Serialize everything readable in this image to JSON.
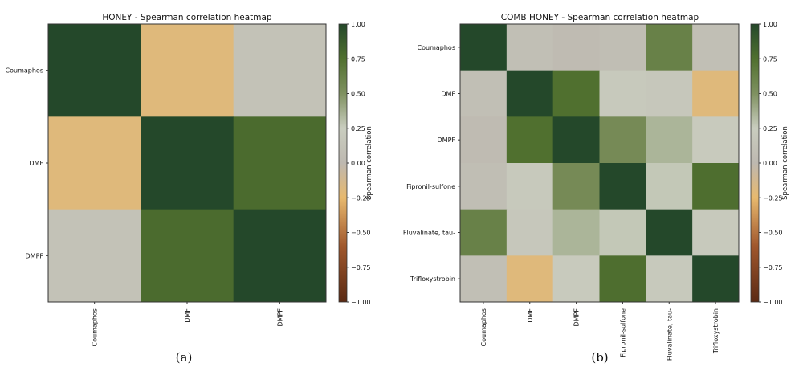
{
  "colorbar": {
    "label": "Spearman correlation",
    "ticks": [
      "1.00",
      "0.75",
      "0.50",
      "0.25",
      "0.00",
      "−0.25",
      "−0.50",
      "−0.75",
      "−1.00"
    ],
    "colormap": [
      {
        "v": -1.0,
        "c": "#5b2a14"
      },
      {
        "v": -0.6,
        "c": "#a0572c"
      },
      {
        "v": -0.25,
        "c": "#e8b96e"
      },
      {
        "v": 0.0,
        "c": "#bdb8b0"
      },
      {
        "v": 0.25,
        "c": "#c9cdbf"
      },
      {
        "v": 0.5,
        "c": "#7f9160"
      },
      {
        "v": 0.75,
        "c": "#50702f"
      },
      {
        "v": 1.0,
        "c": "#24482a"
      }
    ]
  },
  "chart_data": [
    {
      "type": "heatmap",
      "title": "HONEY - Spearman correlation heatmap",
      "panel_label": "(a)",
      "rows": [
        "Coumaphos",
        "DMF",
        "DMPF"
      ],
      "cols": [
        "Coumaphos",
        "DMF",
        "DMPF"
      ],
      "values": [
        [
          1.0,
          -0.2,
          0.12
        ],
        [
          -0.2,
          1.0,
          0.78
        ],
        [
          0.12,
          0.78,
          1.0
        ]
      ],
      "vmin": -1.0,
      "vmax": 1.0,
      "colorbar_label": "Spearman correlation"
    },
    {
      "type": "heatmap",
      "title": "COMB HONEY - Spearman correlation heatmap",
      "panel_label": "(b)",
      "rows": [
        "Coumaphos",
        "DMF",
        "DMPF",
        "Fipronil-sulfone",
        "Fluvalinate, tau-",
        "Trifloxystrobin"
      ],
      "cols": [
        "Coumaphos",
        "DMF",
        "DMPF",
        "Fipronil-sulfone",
        "Fluvalinate, tau-",
        "Trifloxystrobin"
      ],
      "values": [
        [
          1.0,
          0.08,
          0.04,
          0.07,
          0.62,
          0.08
        ],
        [
          0.08,
          1.0,
          0.75,
          0.2,
          0.18,
          -0.2
        ],
        [
          0.04,
          0.75,
          1.0,
          0.55,
          0.35,
          0.22
        ],
        [
          0.07,
          0.2,
          0.55,
          1.0,
          0.27,
          0.76
        ],
        [
          0.62,
          0.18,
          0.35,
          0.27,
          1.0,
          0.2
        ],
        [
          0.08,
          -0.2,
          0.22,
          0.76,
          0.2,
          1.0
        ]
      ],
      "vmin": -1.0,
      "vmax": 1.0,
      "colorbar_label": "Spearman correlation"
    }
  ]
}
